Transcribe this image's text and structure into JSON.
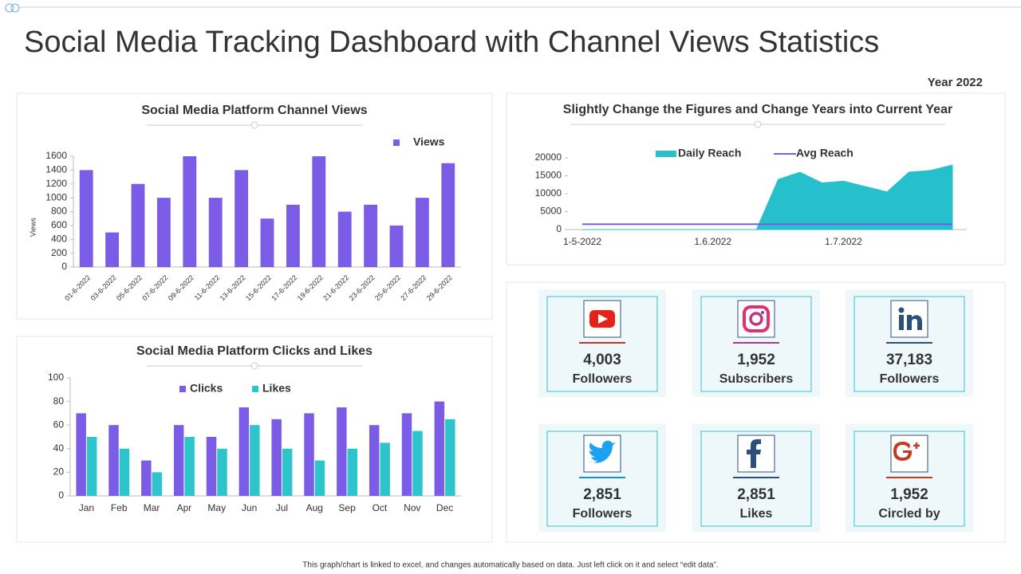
{
  "header": {
    "title": "Social Media Tracking Dashboard with Channel Views Statistics",
    "year": "Year 2022"
  },
  "chart_data": [
    {
      "type": "bar",
      "title": "Social Media Platform Channel Views",
      "ylabel": "Views",
      "categories": [
        "01-6-2022",
        "03-6-2022",
        "05-6-2022",
        "07-6-2022",
        "09-6-2022",
        "11-6-2022",
        "13-6-2022",
        "15-6-2022",
        "17-6-2022",
        "19-6-2022",
        "21-6-2022",
        "23-6-2022",
        "25-6-2022",
        "27-6-2022",
        "29-6-2022"
      ],
      "series": [
        {
          "name": "Views",
          "color": "#7b5ce6",
          "values": [
            1400,
            500,
            1200,
            1000,
            1600,
            1000,
            1400,
            700,
            900,
            1600,
            800,
            900,
            600,
            1000,
            1500
          ]
        }
      ],
      "ylim": [
        0,
        1600
      ],
      "yticks": [
        0,
        200,
        400,
        600,
        800,
        1000,
        1200,
        1400,
        1600
      ]
    },
    {
      "type": "bar",
      "title": "Social Media Platform Clicks and Likes",
      "categories": [
        "Jan",
        "Feb",
        "Mar",
        "Apr",
        "May",
        "Jun",
        "Jul",
        "Aug",
        "Sep",
        "Oct",
        "Nov",
        "Dec"
      ],
      "series": [
        {
          "name": "Clicks",
          "color": "#7b5ce6",
          "values": [
            70,
            60,
            30,
            60,
            50,
            75,
            65,
            70,
            75,
            60,
            70,
            80
          ]
        },
        {
          "name": "Likes",
          "color": "#2ec4cc",
          "values": [
            50,
            40,
            20,
            50,
            40,
            60,
            40,
            30,
            40,
            45,
            55,
            65
          ]
        }
      ],
      "ylim": [
        0,
        100
      ],
      "yticks": [
        0,
        20,
        40,
        60,
        80,
        100
      ]
    },
    {
      "type": "area",
      "title": "Slightly Change the Figures and Change Years into Current Year",
      "categories": [
        "1-5-2022",
        null,
        null,
        null,
        null,
        null,
        "1.6.2022",
        null,
        null,
        null,
        null,
        null,
        "1.7.2022",
        null,
        null,
        null,
        null,
        null
      ],
      "series": [
        {
          "name": "Daily Reach",
          "type": "area",
          "color": "#25c0cc",
          "values": [
            0,
            0,
            0,
            0,
            0,
            0,
            0,
            0,
            0,
            14000,
            16000,
            13000,
            13500,
            12000,
            10500,
            16000,
            16500,
            18000
          ]
        },
        {
          "name": "Avg Reach",
          "type": "line",
          "color": "#7b5ce6",
          "values": [
            1500,
            1500,
            1500,
            1500,
            1500,
            1500,
            1500,
            1500,
            1500,
            1500,
            1500,
            1500,
            1500,
            1500,
            1500,
            1500,
            1500,
            1500
          ]
        }
      ],
      "ylim": [
        0,
        20000
      ],
      "yticks": [
        0,
        5000,
        10000,
        15000,
        20000
      ]
    }
  ],
  "cards": [
    {
      "value": "4,003",
      "label": "Followers"
    },
    {
      "value": "1,952",
      "label": "Subscribers"
    },
    {
      "value": "37,183",
      "label": "Followers"
    },
    {
      "value": "2,851",
      "label": "Followers"
    },
    {
      "value": "2,851",
      "label": "Likes"
    },
    {
      "value": "1,952",
      "label": "Circled by"
    }
  ],
  "footer": "This graph/chart is linked to excel, and changes automatically based on data. Just left click on it and select “edit data”."
}
